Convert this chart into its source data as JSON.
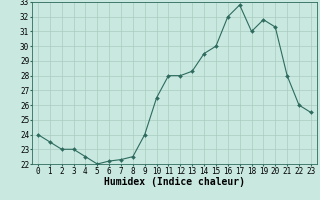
{
  "x": [
    0,
    1,
    2,
    3,
    4,
    5,
    6,
    7,
    8,
    9,
    10,
    11,
    12,
    13,
    14,
    15,
    16,
    17,
    18,
    19,
    20,
    21,
    22,
    23
  ],
  "y": [
    24.0,
    23.5,
    23.0,
    23.0,
    22.5,
    22.0,
    22.2,
    22.3,
    22.5,
    24.0,
    26.5,
    28.0,
    28.0,
    28.3,
    29.5,
    30.0,
    32.0,
    32.8,
    31.0,
    31.8,
    31.3,
    28.0,
    26.0,
    25.5
  ],
  "line_color": "#2e6b5e",
  "marker": "D",
  "marker_size": 2.0,
  "bg_color": "#c8e8e0",
  "grid_color": "#aaccc0",
  "xlabel": "Humidex (Indice chaleur)",
  "ylim": [
    22,
    33
  ],
  "xlim": [
    -0.5,
    23.5
  ],
  "yticks": [
    22,
    23,
    24,
    25,
    26,
    27,
    28,
    29,
    30,
    31,
    32,
    33
  ],
  "xticks": [
    0,
    1,
    2,
    3,
    4,
    5,
    6,
    7,
    8,
    9,
    10,
    11,
    12,
    13,
    14,
    15,
    16,
    17,
    18,
    19,
    20,
    21,
    22,
    23
  ],
  "xlabel_fontsize": 7,
  "tick_fontsize": 5.5
}
